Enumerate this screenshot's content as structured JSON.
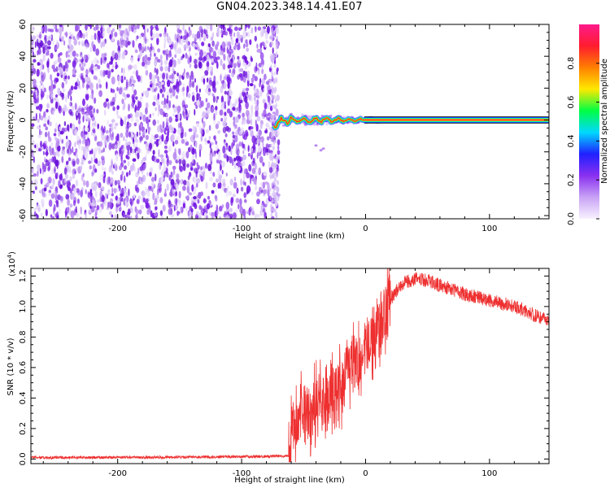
{
  "title": "GN04.2023.348.14.41.E07",
  "colors": {
    "background": "#ffffff",
    "snr_line": "#ee3030",
    "spectrogram_cloud": "#7a1ee6",
    "tone_core": "#e81f1f",
    "colormap": [
      "#f8f2ff",
      "#c8a2f5",
      "#8a30f0",
      "#2020ff",
      "#00d8ff",
      "#00ff44",
      "#ffe800",
      "#ff8000",
      "#ff1c2e",
      "#ff1a8c"
    ]
  },
  "chart_data": [
    {
      "id": "spectrogram",
      "type": "heatmap",
      "title": "GN04.2023.348.14.41.E07",
      "xlabel": "Height of straight line (km)",
      "ylabel": "Frequency (Hz)",
      "xlim": [
        -270,
        148
      ],
      "ylim": [
        -62,
        60
      ],
      "x_ticks": [
        -200,
        -100,
        0,
        100
      ],
      "x_tick_labels": [
        "-200",
        "-100",
        "0",
        "100"
      ],
      "y_ticks": [
        -60,
        -40,
        -20,
        0,
        20,
        40,
        60
      ],
      "y_tick_labels": [
        "-60",
        "-40",
        "-20",
        "0",
        "20",
        "40",
        "60"
      ],
      "noise_region_x": [
        -270,
        -74
      ],
      "transition_region_x": [
        -74,
        12
      ],
      "tone_region_x": [
        12,
        148
      ],
      "tone_frequency_hz": 0,
      "colorbar": {
        "label": "Normalized spectral amplitude",
        "range": [
          0,
          1
        ],
        "ticks": [
          0.0,
          0.2,
          0.4,
          0.6,
          0.8
        ],
        "tick_labels": [
          "0.0",
          "0.2",
          "0.4",
          "0.6",
          "0.8"
        ]
      }
    },
    {
      "id": "snr",
      "type": "line",
      "xlabel": "Height of straight line (km)",
      "ylabel": "SNR (10 * v/v)",
      "y_multiplier_label": "(x10",
      "y_multiplier_exp": "4",
      "xlim": [
        -270,
        148
      ],
      "ylim": [
        -0.03,
        1.25
      ],
      "x_ticks": [
        -200,
        -100,
        0,
        100
      ],
      "x_tick_labels": [
        "-200",
        "-100",
        "0",
        "100"
      ],
      "y_ticks": [
        0.0,
        0.2,
        0.4,
        0.6,
        0.8,
        1.0,
        1.2
      ],
      "y_tick_labels": [
        "0.0",
        "0.2",
        "0.4",
        "0.6",
        "0.8",
        "1.0",
        "1.2"
      ],
      "series": [
        {
          "x": [
            -270,
            -200,
            -100,
            -62,
            -60,
            -55,
            -50,
            -45,
            -40,
            -35,
            -30,
            -25,
            -20,
            -15,
            -10,
            -5,
            0,
            5,
            10,
            15,
            20,
            25,
            30,
            40,
            50,
            60,
            70,
            80,
            90,
            100,
            110,
            120,
            130,
            140,
            148
          ],
          "y": [
            0.01,
            0.01,
            0.015,
            0.02,
            0.15,
            0.25,
            0.32,
            0.3,
            0.34,
            0.38,
            0.4,
            0.45,
            0.5,
            0.55,
            0.62,
            0.66,
            0.72,
            0.78,
            0.85,
            0.95,
            1.05,
            1.1,
            1.15,
            1.18,
            1.17,
            1.14,
            1.11,
            1.08,
            1.06,
            1.04,
            1.02,
            1.0,
            0.97,
            0.93,
            0.9
          ]
        }
      ]
    }
  ]
}
